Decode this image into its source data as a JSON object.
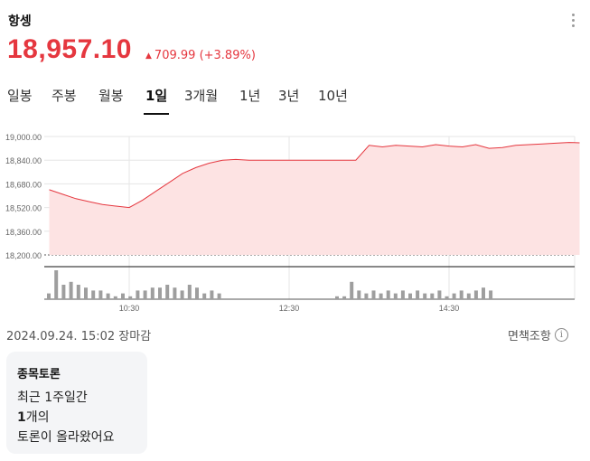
{
  "index": {
    "name": "항셍",
    "price": "18,957.10",
    "change": "709.99",
    "change_pct": "(+3.89%)",
    "trend": "up"
  },
  "tabs": [
    {
      "label": "일봉",
      "active": false
    },
    {
      "label": "주봉",
      "active": false
    },
    {
      "label": "월봉",
      "active": false
    },
    {
      "label": "1일",
      "active": true
    },
    {
      "label": "3개월",
      "active": false
    },
    {
      "label": "1년",
      "active": false
    },
    {
      "label": "3년",
      "active": false
    },
    {
      "label": "10년",
      "active": false
    }
  ],
  "chart_data": {
    "type": "area",
    "y_ticks": [
      "19,000.00",
      "18,840.00",
      "18,680.00",
      "18,520.00",
      "18,360.00",
      "18,200.00"
    ],
    "ylim": [
      18200,
      19000
    ],
    "x_ticks": [
      "10:30",
      "12:30",
      "14:30"
    ],
    "grid": true,
    "colors": {
      "line": "#e5373f",
      "fill": "#fde3e3",
      "volume": "#9e9e9e"
    },
    "series": [
      {
        "x": [
          "09:30",
          "09:40",
          "09:50",
          "10:00",
          "10:10",
          "10:20",
          "10:30",
          "10:40",
          "10:50",
          "11:00",
          "11:10",
          "11:20",
          "11:30",
          "11:40",
          "11:50",
          "12:00",
          "13:00",
          "13:10",
          "13:20",
          "13:30",
          "13:40",
          "13:50",
          "14:00",
          "14:10",
          "14:20",
          "14:30",
          "14:40",
          "14:50",
          "15:00",
          "15:10",
          "15:20",
          "15:30",
          "15:40",
          "15:50",
          "16:00",
          "16:08"
        ],
        "values": [
          18640,
          18610,
          18580,
          18560,
          18540,
          18530,
          18520,
          18570,
          18630,
          18690,
          18750,
          18790,
          18820,
          18840,
          18845,
          18840,
          18840,
          18840,
          18840,
          18940,
          18930,
          18940,
          18935,
          18930,
          18945,
          18935,
          18930,
          18945,
          18920,
          18925,
          18940,
          18945,
          18950,
          18955,
          18960,
          18957
        ]
      }
    ],
    "volume": [
      2,
      10,
      5,
      6,
      5,
      4,
      3,
      3,
      2,
      1,
      2,
      1,
      3,
      3,
      4,
      4,
      5,
      4,
      3,
      5,
      4,
      2,
      3,
      2,
      1,
      1,
      6,
      3,
      2,
      3,
      2,
      3,
      2,
      3,
      2,
      3,
      2,
      2,
      3,
      1,
      2,
      3,
      2,
      3,
      4,
      3
    ]
  },
  "footer": {
    "datetime": "2024.09.24. 15:02 장마감",
    "disclaimer": "면책조항",
    "info_icon": "info-icon"
  },
  "discussion": {
    "title": "종목토론",
    "line1": "최근 1주일간",
    "count": "1",
    "count_suffix": "개의",
    "line3": "토론이 올라왔어요"
  }
}
